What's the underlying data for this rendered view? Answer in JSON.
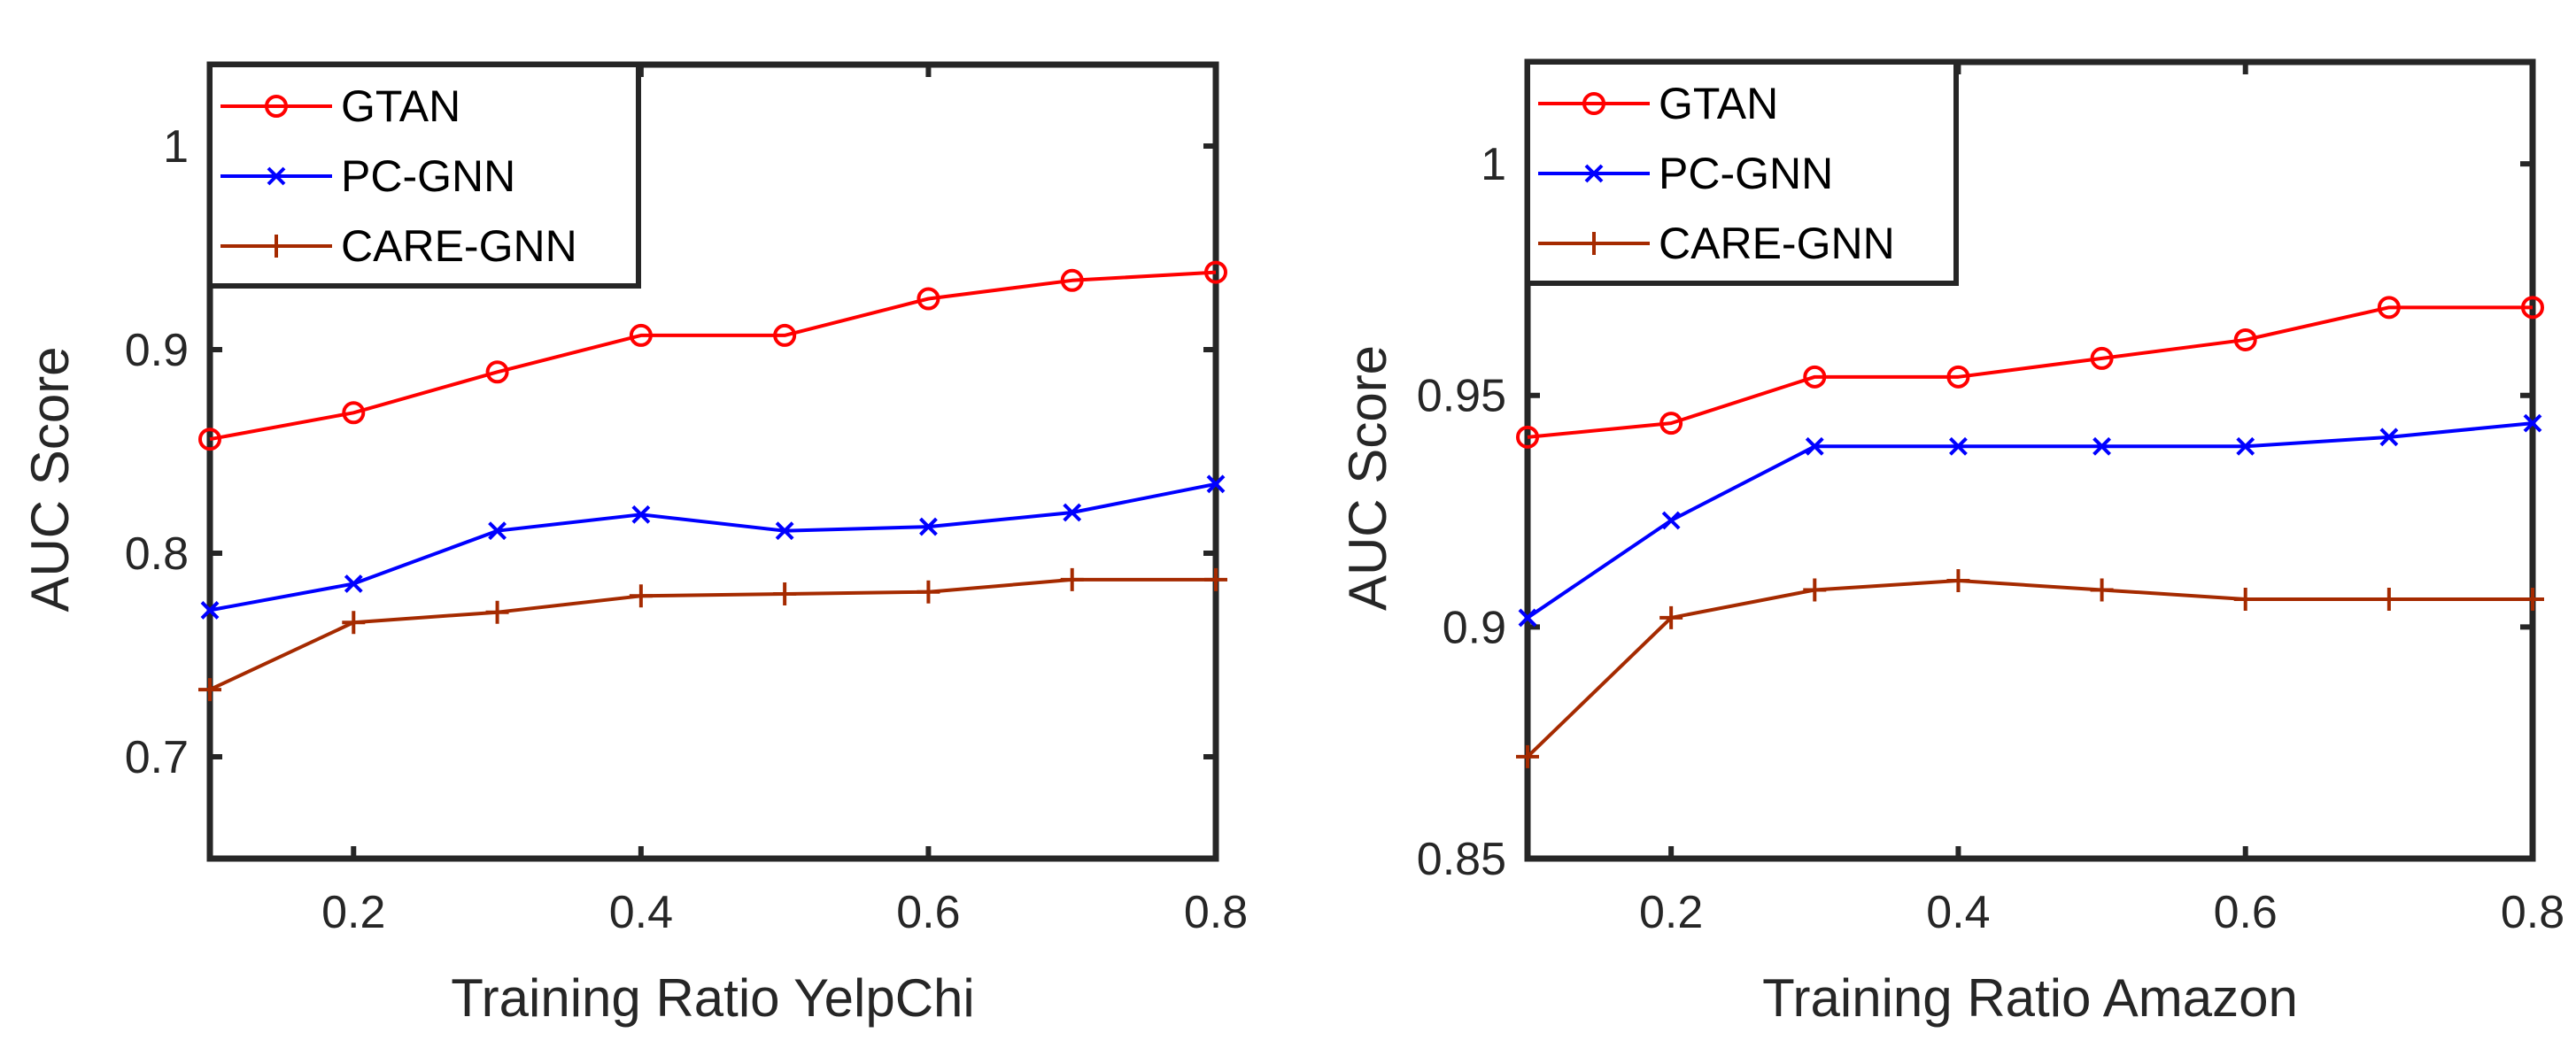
{
  "chart_data": [
    {
      "type": "line",
      "xlabel": "Training Ratio YelpChi",
      "ylabel": "AUC Score",
      "xlim": [
        0.1,
        0.8
      ],
      "ylim": [
        0.65,
        1.04
      ],
      "xticks": [
        0.2,
        0.4,
        0.6,
        0.8
      ],
      "xtick_labels": [
        "0.2",
        "0.4",
        "0.6",
        "0.8"
      ],
      "yticks": [
        0.7,
        0.8,
        0.9,
        1.0
      ],
      "ytick_labels": [
        "0.7",
        "0.8",
        "0.9",
        "1"
      ],
      "grid": false,
      "legend_position": "top-left",
      "x": [
        0.1,
        0.2,
        0.3,
        0.4,
        0.5,
        0.6,
        0.7,
        0.8
      ],
      "series": [
        {
          "name": "GTAN",
          "color": "#ff0000",
          "marker": "circle",
          "values": [
            0.856,
            0.869,
            0.889,
            0.907,
            0.907,
            0.925,
            0.934,
            0.938
          ]
        },
        {
          "name": "PC-GNN",
          "color": "#0000ff",
          "marker": "x",
          "values": [
            0.772,
            0.785,
            0.811,
            0.819,
            0.811,
            0.813,
            0.82,
            0.834
          ]
        },
        {
          "name": "CARE-GNN",
          "color": "#a52a00",
          "marker": "plus",
          "values": [
            0.733,
            0.766,
            0.771,
            0.779,
            0.78,
            0.781,
            0.787,
            0.787
          ]
        }
      ]
    },
    {
      "type": "line",
      "xlabel": "Training Ratio Amazon",
      "ylabel": "AUC Score",
      "xlim": [
        0.1,
        0.8
      ],
      "ylim": [
        0.85,
        1.022
      ],
      "xticks": [
        0.2,
        0.4,
        0.6,
        0.8
      ],
      "xtick_labels": [
        "0.2",
        "0.4",
        "0.6",
        "0.8"
      ],
      "yticks": [
        0.85,
        0.9,
        0.95,
        1.0
      ],
      "ytick_labels": [
        "0.85",
        "0.9",
        "0.95",
        "1"
      ],
      "grid": false,
      "legend_position": "top-left",
      "x": [
        0.1,
        0.2,
        0.3,
        0.4,
        0.5,
        0.6,
        0.7,
        0.8
      ],
      "series": [
        {
          "name": "GTAN",
          "color": "#ff0000",
          "marker": "circle",
          "values": [
            0.941,
            0.944,
            0.954,
            0.954,
            0.958,
            0.962,
            0.969,
            0.969
          ]
        },
        {
          "name": "PC-GNN",
          "color": "#0000ff",
          "marker": "x",
          "values": [
            0.902,
            0.923,
            0.939,
            0.939,
            0.939,
            0.939,
            0.941,
            0.944
          ]
        },
        {
          "name": "CARE-GNN",
          "color": "#a52a00",
          "marker": "plus",
          "values": [
            0.872,
            0.902,
            0.908,
            0.91,
            0.908,
            0.906,
            0.906,
            0.906
          ]
        }
      ]
    }
  ]
}
